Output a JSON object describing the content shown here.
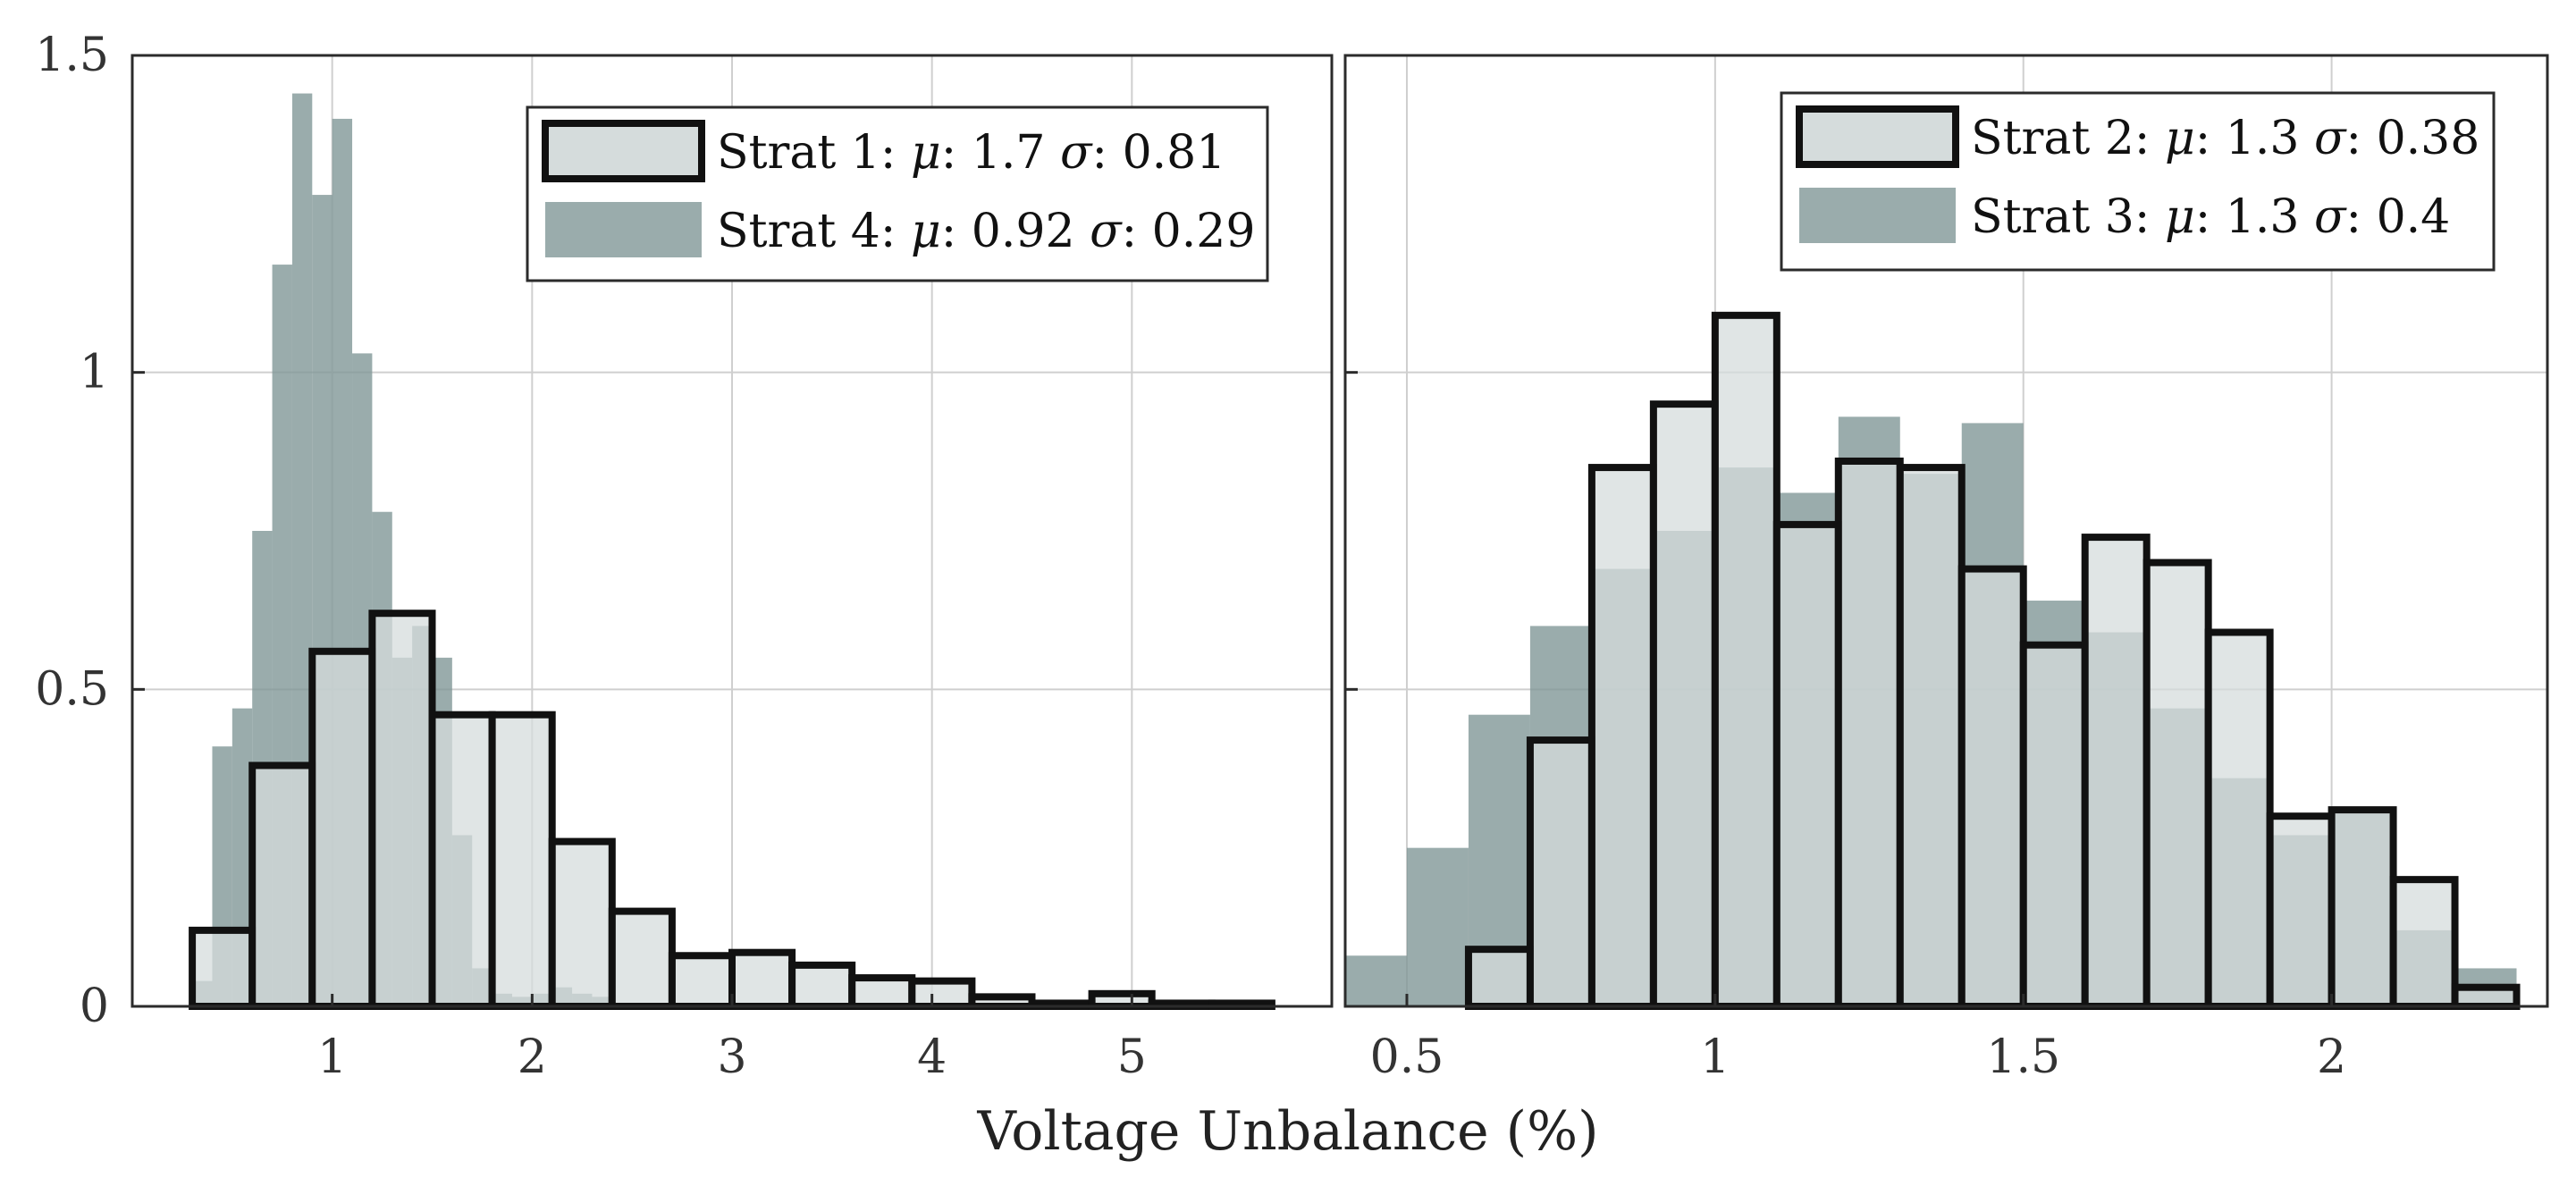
{
  "xlabel": "Voltage Unbalance (%)",
  "colors": {
    "outline_fill": "#d5dcdc",
    "outline_stroke": "#111111",
    "solid_fill": "#7d9595",
    "solid_opacity": 0.78
  },
  "chart_data": [
    {
      "type": "bar",
      "xlim": [
        0.0,
        6.0
      ],
      "ylim": [
        0,
        1.5
      ],
      "xticks": [
        1,
        2,
        3,
        4,
        5
      ],
      "yticks": [
        0,
        0.5,
        1,
        1.5
      ],
      "grid": true,
      "legend": {
        "placement": "top-right",
        "entries": [
          {
            "style": "outline",
            "prefix": "Strat 1: ",
            "mu": "1.7",
            "sigma": "0.81"
          },
          {
            "style": "solid",
            "prefix": "Strat 4: ",
            "mu": "0.92",
            "sigma": "0.29"
          }
        ]
      },
      "series": [
        {
          "style": "outline",
          "bin_start": 0.3,
          "bin_width": 0.3,
          "values": [
            0.12,
            0.38,
            0.56,
            0.62,
            0.46,
            0.46,
            0.26,
            0.15,
            0.08,
            0.085,
            0.065,
            0.045,
            0.04,
            0.015,
            0.005,
            0.02,
            0.005,
            0.005
          ]
        },
        {
          "style": "solid",
          "bin_start": 0.3,
          "bin_width": 0.1,
          "values": [
            0.04,
            0.41,
            0.47,
            0.75,
            1.17,
            1.44,
            1.28,
            1.4,
            1.03,
            0.78,
            0.55,
            0.6,
            0.55,
            0.27,
            0.06,
            0.02,
            0.015,
            0.02,
            0.03,
            0.02,
            0.015
          ]
        }
      ]
    },
    {
      "type": "bar",
      "xlim": [
        0.4,
        2.35
      ],
      "ylim": [
        0,
        1.5
      ],
      "xticks": [
        0.5,
        1,
        1.5,
        2
      ],
      "yticks": [
        0,
        0.5,
        1,
        1.5
      ],
      "grid": true,
      "legend": {
        "placement": "top-right",
        "entries": [
          {
            "style": "outline",
            "prefix": "Strat 2: ",
            "mu": "1.3",
            "sigma": "0.38"
          },
          {
            "style": "solid",
            "prefix": "Strat 3: ",
            "mu": "1.3",
            "sigma": "0.4"
          }
        ]
      },
      "series": [
        {
          "style": "outline",
          "bin_start": 0.6,
          "bin_width": 0.1,
          "values": [
            0.09,
            0.42,
            0.85,
            0.95,
            1.09,
            0.76,
            0.86,
            0.85,
            0.69,
            0.57,
            0.74,
            0.7,
            0.59,
            0.3,
            0.31,
            0.2,
            0.03
          ]
        },
        {
          "style": "solid",
          "bin_start": 0.4,
          "bin_width": 0.1,
          "values": [
            0.08,
            0.25,
            0.46,
            0.6,
            0.69,
            0.75,
            0.85,
            0.81,
            0.93,
            0.84,
            0.92,
            0.64,
            0.59,
            0.47,
            0.36,
            0.27,
            0.31,
            0.12,
            0.06
          ]
        }
      ]
    }
  ]
}
